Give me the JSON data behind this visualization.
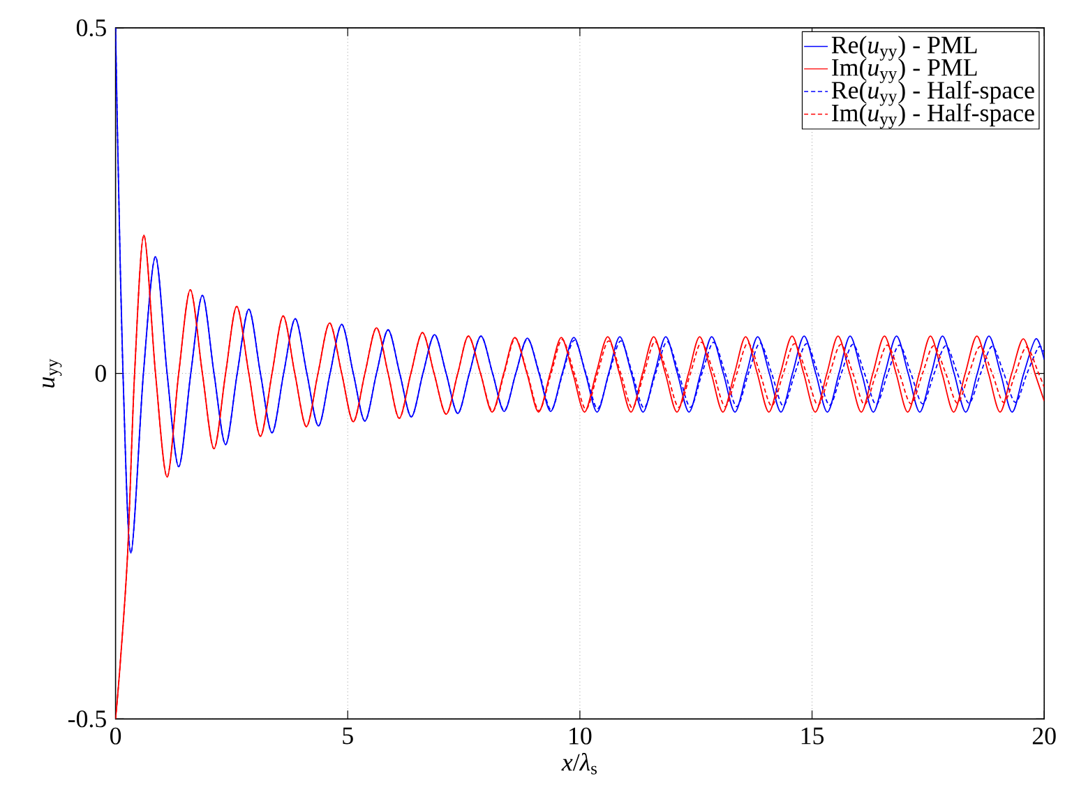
{
  "chart_data": {
    "type": "line",
    "xlabel": "*x*/*λ*$_{s}$",
    "ylabel": "*u*$_{yy}$",
    "xlim": [
      0,
      20
    ],
    "ylim": [
      -0.5,
      0.5
    ],
    "xticks": [
      0,
      5,
      10,
      15,
      20
    ],
    "yticks": [
      -0.5,
      0,
      0.5
    ],
    "grid": true,
    "legend": "top right",
    "series": [
      {
        "name": "Re(*u*$_{yy}$) - PML",
        "color": "#0000ff",
        "line_style": "solid",
        "x": [
          0,
          0.05,
          0.16,
          0.33,
          0.6,
          0.86,
          1.11,
          1.36,
          1.62,
          1.87,
          2.12,
          2.37,
          2.62,
          2.87,
          3.12,
          3.37,
          3.62,
          3.87,
          4.12,
          4.37,
          4.62,
          4.87,
          5.12,
          5.37,
          5.62,
          5.87,
          6.12,
          6.37,
          6.62,
          6.87,
          7.12,
          7.37,
          7.62,
          7.87,
          8.12,
          8.37,
          8.62,
          8.87,
          9.12,
          9.37,
          9.62,
          9.87,
          10.12,
          10.37,
          10.62,
          10.86,
          11.11,
          11.36,
          11.61,
          11.85,
          12.1,
          12.35,
          12.6,
          12.84,
          13.09,
          13.34,
          13.59,
          13.83,
          14.08,
          14.33,
          14.58,
          14.83,
          15.08,
          15.33,
          15.58,
          15.82,
          16.07,
          16.32,
          16.57,
          16.82,
          17.07,
          17.32,
          17.57,
          17.81,
          18.06,
          18.31,
          18.56,
          18.81,
          19.06,
          19.31,
          19.56,
          19.82,
          20
        ],
        "values": [
          0.5,
          0.32,
          0,
          -0.26,
          0,
          0.169,
          0,
          -0.135,
          0,
          0.113,
          0,
          -0.103,
          0,
          0.093,
          0,
          -0.086,
          0,
          0.079,
          0,
          -0.076,
          0,
          0.071,
          0,
          -0.069,
          0,
          0.063,
          0,
          -0.063,
          0,
          0.056,
          0,
          -0.058,
          0,
          0.054,
          0,
          -0.055,
          0,
          0.051,
          0,
          -0.055,
          0,
          0.052,
          0,
          -0.056,
          0,
          0.053,
          0,
          -0.056,
          0,
          0.053,
          0,
          -0.056,
          0,
          0.053,
          0,
          -0.056,
          0,
          0.053,
          0,
          -0.056,
          0,
          0.054,
          0,
          -0.056,
          0,
          0.054,
          0,
          -0.056,
          0,
          0.054,
          0,
          -0.056,
          0,
          0.054,
          0,
          -0.056,
          0,
          0.054,
          0,
          -0.056,
          0,
          0.05,
          0.02
        ]
      },
      {
        "name": "Im(*u*$_{yy}$) - PML",
        "color": "#ff0000",
        "line_style": "solid",
        "x": [
          0,
          0.1,
          0.26,
          0.41,
          0.61,
          0.86,
          1.11,
          1.36,
          1.61,
          1.87,
          2.12,
          2.37,
          2.61,
          2.87,
          3.12,
          3.37,
          3.61,
          3.86,
          4.11,
          4.36,
          4.61,
          4.87,
          5.12,
          5.37,
          5.62,
          5.87,
          6.11,
          6.36,
          6.61,
          6.86,
          7.12,
          7.37,
          7.6,
          7.86,
          8.11,
          8.36,
          8.6,
          8.86,
          9.11,
          9.36,
          9.6,
          9.85,
          10.1,
          10.35,
          10.6,
          10.85,
          11.1,
          11.35,
          11.59,
          11.84,
          12.09,
          12.34,
          12.58,
          12.83,
          13.08,
          13.33,
          13.57,
          13.82,
          14.07,
          14.32,
          14.57,
          14.82,
          15.07,
          15.32,
          15.56,
          15.81,
          16.06,
          16.31,
          16.56,
          16.81,
          17.06,
          17.31,
          17.55,
          17.8,
          18.05,
          18.3,
          18.55,
          18.8,
          19.05,
          19.3,
          19.55,
          19.8,
          20
        ],
        "values": [
          -0.5,
          -0.42,
          -0.26,
          0,
          0.2,
          0,
          -0.15,
          0,
          0.121,
          0,
          -0.109,
          0,
          0.097,
          0,
          -0.091,
          0,
          0.083,
          0,
          -0.077,
          0,
          0.073,
          0,
          -0.07,
          0,
          0.066,
          0,
          -0.065,
          0,
          0.059,
          0,
          -0.059,
          0,
          0.054,
          0,
          -0.056,
          0,
          0.052,
          0,
          -0.056,
          0,
          0.052,
          0,
          -0.056,
          0,
          0.053,
          0,
          -0.056,
          0,
          0.053,
          0,
          -0.056,
          0,
          0.053,
          0,
          -0.056,
          0,
          0.053,
          0,
          -0.056,
          0,
          0.054,
          0,
          -0.056,
          0,
          0.054,
          0,
          -0.056,
          0,
          0.054,
          0,
          -0.056,
          0,
          0.054,
          0,
          -0.056,
          0,
          0.054,
          0,
          -0.056,
          0,
          0.05,
          0,
          -0.04
        ]
      },
      {
        "name": "Re(*u*$_{yy}$) - Half-space",
        "color": "#0000ff",
        "line_style": "dashed",
        "x": [
          0,
          0.05,
          0.16,
          0.33,
          0.6,
          0.86,
          1.11,
          1.36,
          1.62,
          1.87,
          2.12,
          2.37,
          2.62,
          2.87,
          3.12,
          3.37,
          3.62,
          3.87,
          4.12,
          4.37,
          4.62,
          4.87,
          5.12,
          5.37,
          5.62,
          5.87,
          6.12,
          6.37,
          6.62,
          6.87,
          7.12,
          7.37,
          7.62,
          7.87,
          8.12,
          8.37,
          8.62,
          8.87,
          9.13,
          9.38,
          9.63,
          9.88,
          10.13,
          10.38,
          10.63,
          10.88,
          11.13,
          11.38,
          11.63,
          11.88,
          12.13,
          12.38,
          12.63,
          12.88,
          13.13,
          13.38,
          13.63,
          13.88,
          14.13,
          14.38,
          14.63,
          14.88,
          15.13,
          15.38,
          15.63,
          15.88,
          16.13,
          16.38,
          16.63,
          16.88,
          17.13,
          17.38,
          17.63,
          17.88,
          18.13,
          18.38,
          18.63,
          18.88,
          19.13,
          19.38,
          19.63,
          19.88,
          20
        ],
        "values": [
          0.5,
          0.32,
          0,
          -0.26,
          0,
          0.169,
          0,
          -0.135,
          0,
          0.113,
          0,
          -0.103,
          0,
          0.093,
          0,
          -0.086,
          0,
          0.079,
          0,
          -0.076,
          0,
          0.071,
          0,
          -0.069,
          0,
          0.063,
          0,
          -0.063,
          0,
          0.056,
          0,
          -0.058,
          0,
          0.054,
          0,
          -0.054,
          0,
          0.05,
          0,
          -0.053,
          0,
          0.048,
          0,
          -0.051,
          0,
          0.047,
          0,
          -0.05,
          0,
          0.046,
          0,
          -0.049,
          0,
          0.045,
          0,
          -0.048,
          0,
          0.044,
          0,
          -0.047,
          0,
          0.043,
          0,
          -0.046,
          0,
          0.042,
          0,
          -0.045,
          0,
          0.041,
          0,
          -0.044,
          0,
          0.04,
          0,
          -0.043,
          0,
          0.039,
          0,
          -0.042,
          0,
          0.038,
          0.03
        ]
      },
      {
        "name": "Im(*u*$_{yy}$) - Half-space",
        "color": "#ff0000",
        "line_style": "dashed",
        "x": [
          0,
          0.1,
          0.26,
          0.41,
          0.61,
          0.86,
          1.11,
          1.36,
          1.61,
          1.87,
          2.12,
          2.37,
          2.61,
          2.87,
          3.12,
          3.37,
          3.61,
          3.86,
          4.11,
          4.36,
          4.61,
          4.87,
          5.12,
          5.37,
          5.62,
          5.87,
          6.11,
          6.36,
          6.61,
          6.86,
          7.12,
          7.37,
          7.6,
          7.86,
          8.12,
          8.37,
          8.61,
          8.87,
          9.12,
          9.38,
          9.62,
          9.88,
          10.13,
          10.38,
          10.62,
          10.88,
          11.13,
          11.38,
          11.62,
          11.88,
          12.13,
          12.38,
          12.62,
          12.88,
          13.13,
          13.38,
          13.62,
          13.88,
          14.13,
          14.38,
          14.62,
          14.88,
          15.13,
          15.38,
          15.62,
          15.88,
          16.13,
          16.38,
          16.62,
          16.88,
          17.13,
          17.38,
          17.62,
          17.88,
          18.13,
          18.38,
          18.62,
          18.88,
          19.13,
          19.38,
          19.62,
          19.88,
          20
        ],
        "values": [
          -0.5,
          -0.42,
          -0.26,
          0,
          0.2,
          0,
          -0.15,
          0,
          0.121,
          0,
          -0.109,
          0,
          0.097,
          0,
          -0.091,
          0,
          0.083,
          0,
          -0.077,
          0,
          0.073,
          0,
          -0.07,
          0,
          0.066,
          0,
          -0.065,
          0,
          0.059,
          0,
          -0.059,
          0,
          0.054,
          0,
          -0.055,
          0,
          0.051,
          0,
          -0.054,
          0,
          0.049,
          0,
          -0.052,
          0,
          0.047,
          0,
          -0.05,
          0,
          0.046,
          0,
          -0.049,
          0,
          0.045,
          0,
          -0.048,
          0,
          0.044,
          0,
          -0.047,
          0,
          0.043,
          0,
          -0.046,
          0,
          0.042,
          0,
          -0.045,
          0,
          0.041,
          0,
          -0.044,
          0,
          0.04,
          0,
          -0.043,
          0,
          0.039,
          0,
          -0.042,
          0,
          0.038,
          0,
          -0.02
        ]
      }
    ]
  }
}
